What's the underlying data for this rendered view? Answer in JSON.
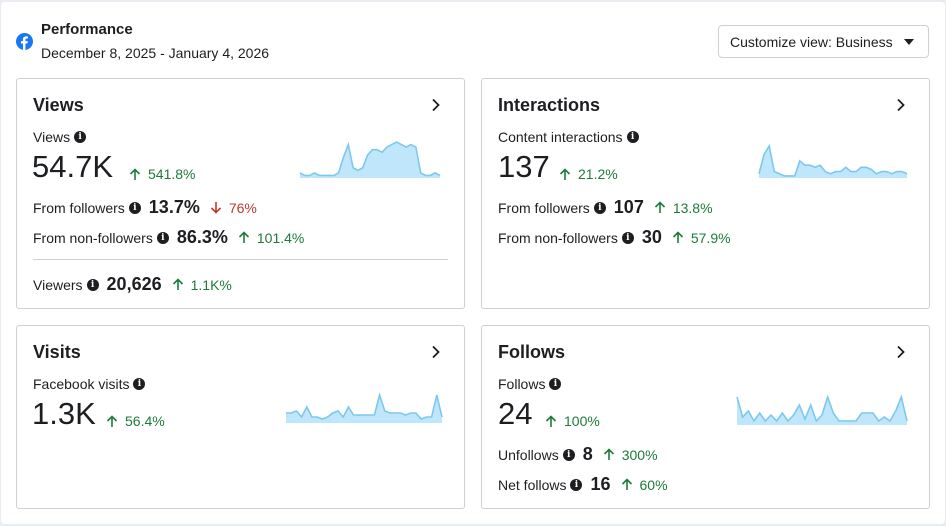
{
  "header": {
    "title": "Performance",
    "date_range": "December 8, 2025 - January 4, 2026",
    "customize_label": "Customize view: Business"
  },
  "views": {
    "title": "Views",
    "metric_label": "Views",
    "value": "54.7K",
    "change": "541.8%",
    "change_dir": "up",
    "from_followers_label": "From followers",
    "from_followers_value": "13.7%",
    "from_followers_change": "76%",
    "from_followers_dir": "down",
    "from_non_followers_label": "From non-followers",
    "from_non_followers_value": "86.3%",
    "from_non_followers_change": "101.4%",
    "from_non_followers_dir": "up",
    "viewers_label": "Viewers",
    "viewers_value": "20,626",
    "viewers_change": "1.1K%",
    "viewers_dir": "up"
  },
  "interactions": {
    "title": "Interactions",
    "metric_label": "Content interactions",
    "value": "137",
    "change": "21.2%",
    "change_dir": "up",
    "from_followers_label": "From followers",
    "from_followers_value": "107",
    "from_followers_change": "13.8%",
    "from_followers_dir": "up",
    "from_non_followers_label": "From non-followers",
    "from_non_followers_value": "30",
    "from_non_followers_change": "57.9%",
    "from_non_followers_dir": "up"
  },
  "visits": {
    "title": "Visits",
    "metric_label": "Facebook visits",
    "value": "1.3K",
    "change": "56.4%",
    "change_dir": "up"
  },
  "follows": {
    "title": "Follows",
    "metric_label": "Follows",
    "value": "24",
    "change": "100%",
    "change_dir": "up",
    "unfollows_label": "Unfollows",
    "unfollows_value": "8",
    "unfollows_change": "300%",
    "unfollows_dir": "up",
    "net_follows_label": "Net follows",
    "net_follows_value": "16",
    "net_follows_change": "60%",
    "net_follows_dir": "up"
  },
  "colors": {
    "up": "#1f7a3a",
    "down": "#c0392b",
    "spark_stroke": "#7cc8ef",
    "spark_fill": "#bfe6fa",
    "brand": "#1877f2"
  },
  "sparklines": {
    "views": [
      2,
      1,
      1,
      2,
      1,
      1,
      1,
      1,
      2,
      8,
      13,
      4,
      3,
      4,
      9,
      11,
      11,
      10,
      12,
      13,
      14,
      13,
      12,
      13,
      12,
      2,
      1,
      1,
      2,
      1
    ],
    "interactions": [
      2,
      11,
      15,
      3,
      2,
      1,
      1,
      1,
      8,
      6,
      6,
      5,
      6,
      3,
      2,
      3,
      3,
      5,
      3,
      3,
      5,
      5,
      4,
      2,
      3,
      3,
      2,
      3,
      3,
      2
    ],
    "visits": [
      5,
      5,
      6,
      3,
      8,
      3,
      3,
      2,
      3,
      5,
      6,
      3,
      8,
      4,
      4,
      4,
      4,
      4,
      14,
      6,
      5,
      5,
      5,
      4,
      5,
      5,
      2,
      3,
      3,
      14,
      3
    ],
    "follows": [
      14,
      4,
      7,
      2,
      6,
      2,
      5,
      2,
      6,
      2,
      5,
      10,
      3,
      10,
      2,
      5,
      14,
      6,
      2,
      2,
      2,
      2,
      6,
      6,
      6,
      2,
      4,
      2,
      7,
      14,
      2
    ]
  }
}
